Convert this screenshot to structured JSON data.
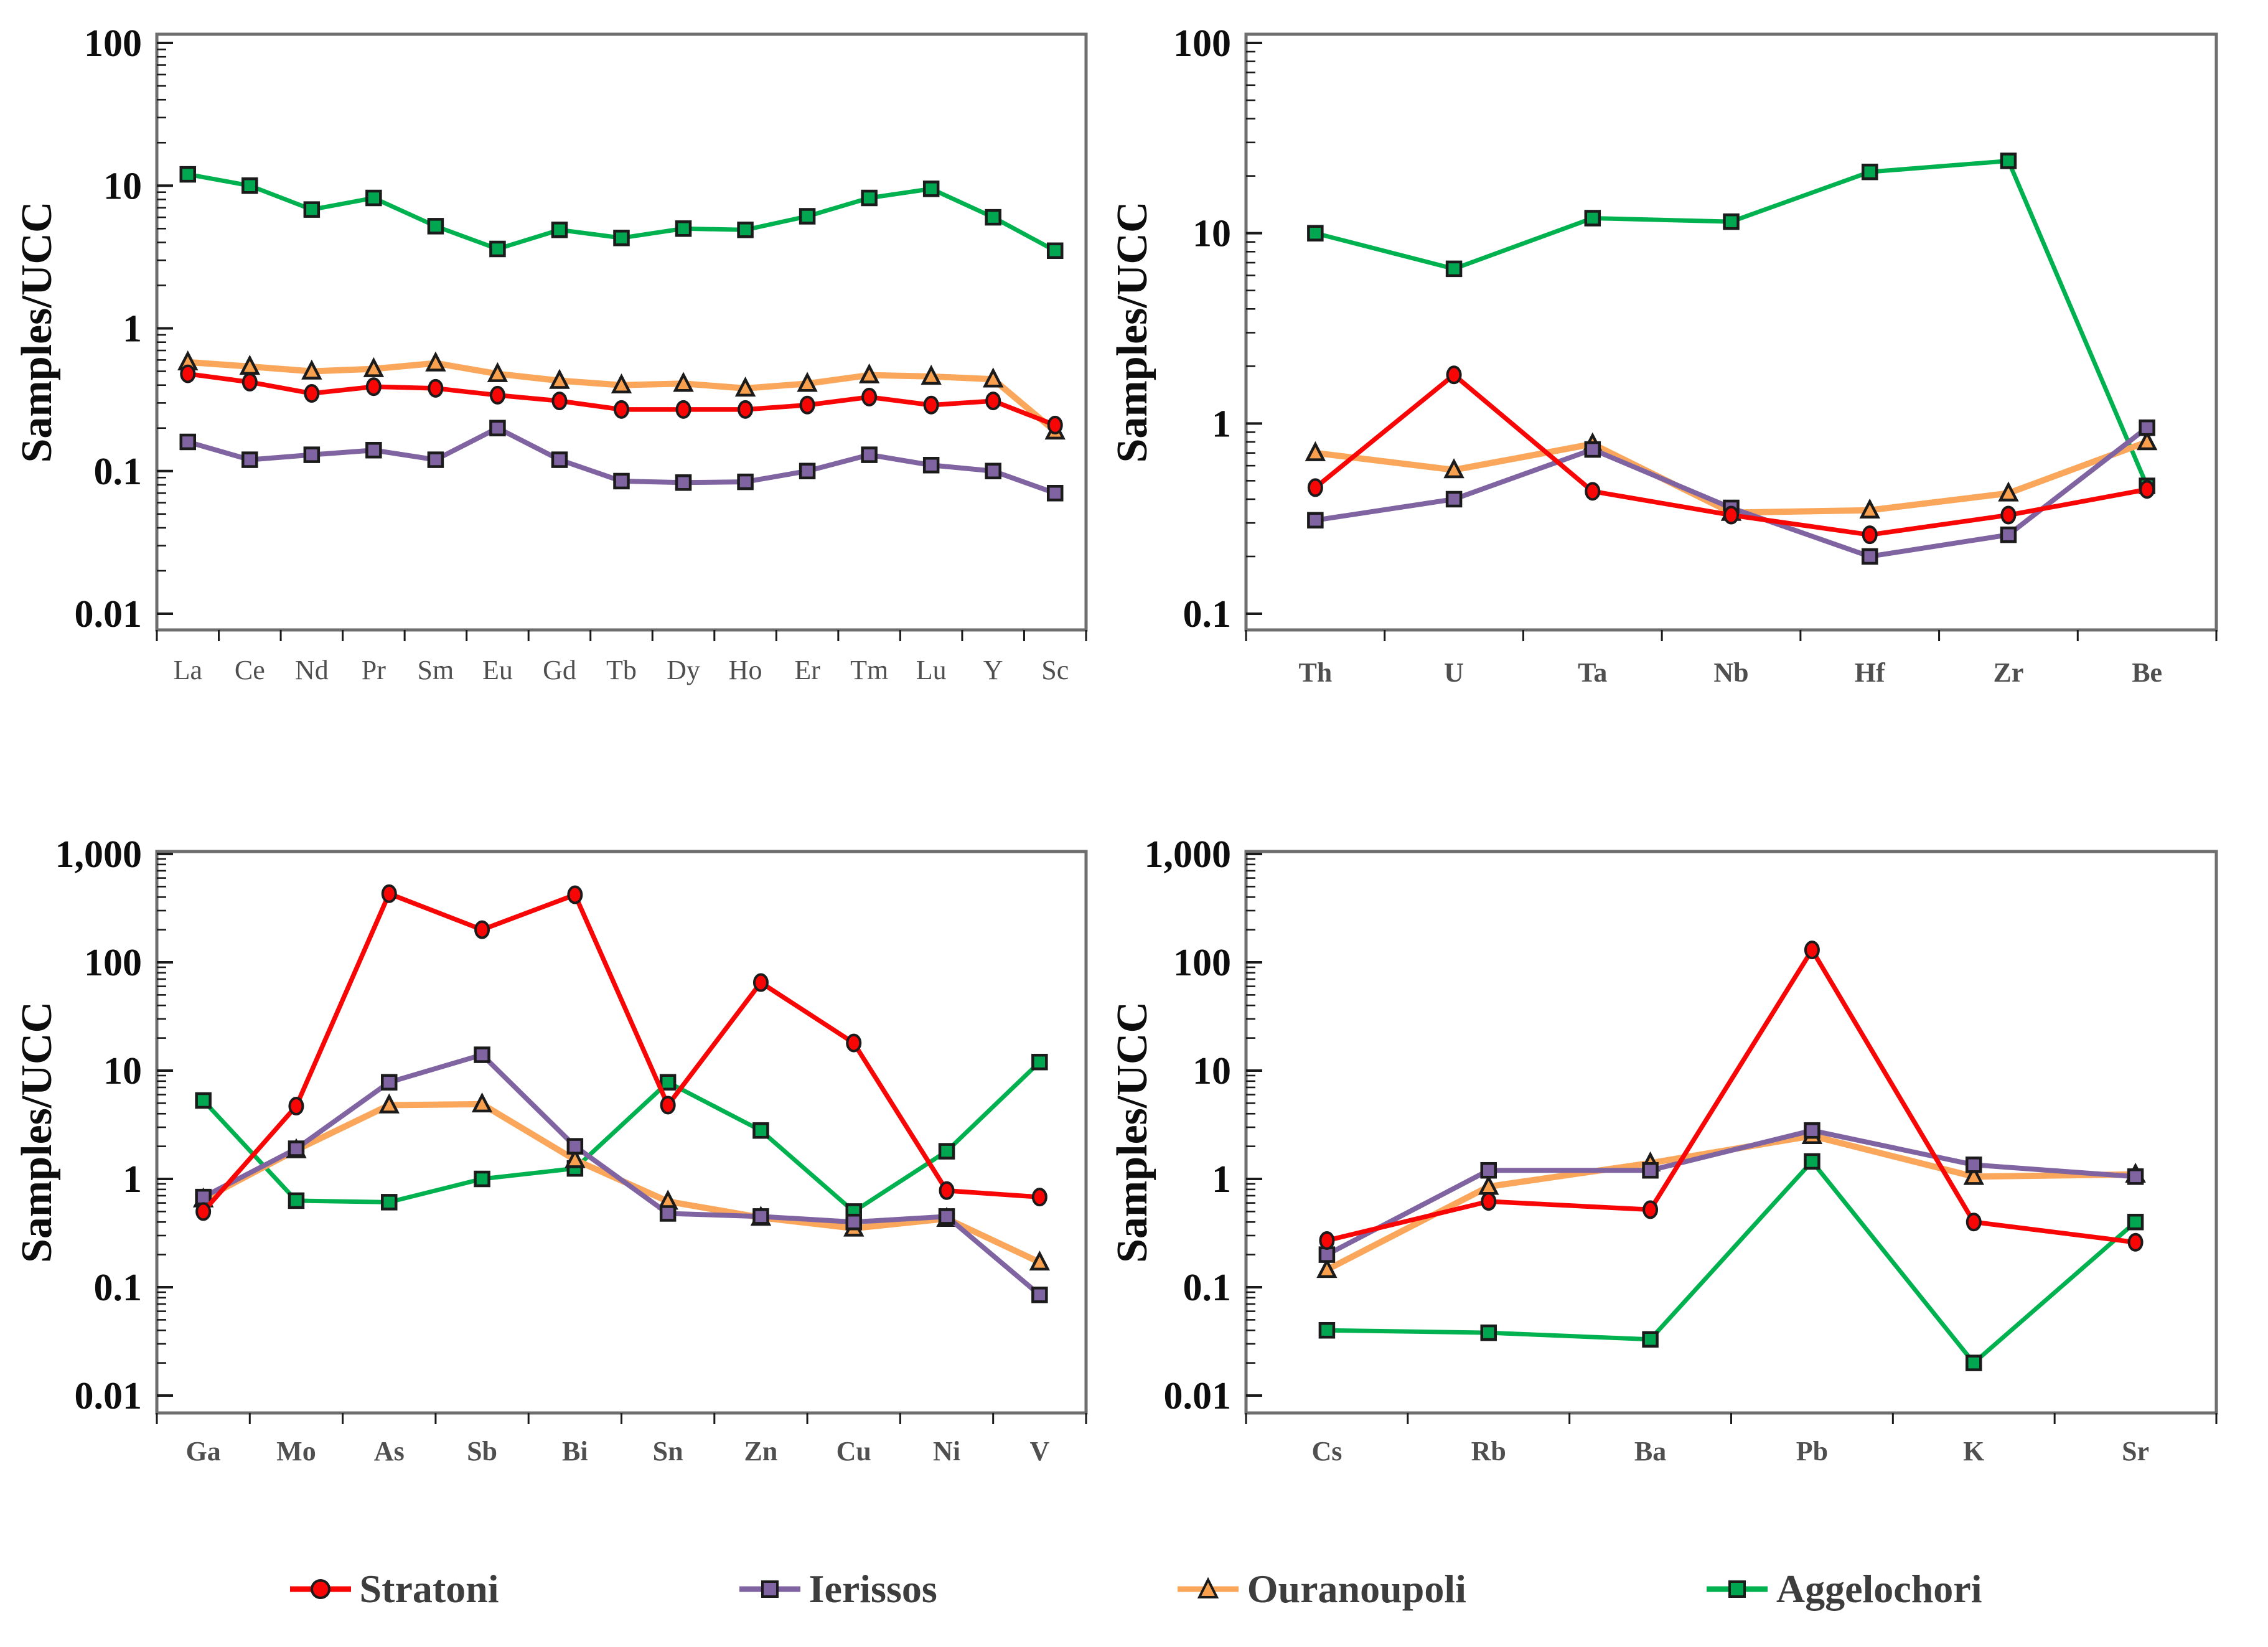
{
  "figure": {
    "ylabel": "Samples/UCC",
    "legend": {
      "items": [
        {
          "label": "Stratoni",
          "marker": "circle",
          "color": "#F80505",
          "line_color": "#F80505"
        },
        {
          "label": "Ierissos",
          "marker": "square",
          "color": "#8064A2",
          "line_color": "#8064A2"
        },
        {
          "label": "Ouranoupoli",
          "marker": "triangle",
          "color": "#F9A04F",
          "line_color": "#FAA75C"
        },
        {
          "label": "Aggelochori",
          "marker": "square",
          "color": "#00A650",
          "line_color": "#00B24F"
        }
      ]
    }
  },
  "chart_data": [
    {
      "id": "ree-spider",
      "type": "line",
      "title": "",
      "xlabel": "",
      "ylabel": "Samples/UCC",
      "yscale": "log",
      "ylim": [
        0.01,
        100
      ],
      "ytick_labels": [
        "100",
        "10",
        "1",
        "0.1",
        "0.01"
      ],
      "grid": false,
      "legend_position": "shared-bottom",
      "categories": [
        "La",
        "Ce",
        "Nd",
        "Pr",
        "Sm",
        "Eu",
        "Gd",
        "Tb",
        "Dy",
        "Ho",
        "Er",
        "Tm",
        "Lu",
        "Y",
        "Sc"
      ],
      "series": [
        {
          "name": "Stratoni",
          "values": [
            0.48,
            0.42,
            0.35,
            0.39,
            0.38,
            0.34,
            0.31,
            0.27,
            0.27,
            0.27,
            0.29,
            0.33,
            0.29,
            0.31,
            0.21
          ]
        },
        {
          "name": "Ierissos",
          "values": [
            0.16,
            0.12,
            0.13,
            0.14,
            0.12,
            0.2,
            0.12,
            0.085,
            0.083,
            0.084,
            0.1,
            0.13,
            0.11,
            0.1,
            0.07
          ]
        },
        {
          "name": "Ouranoupoli",
          "values": [
            0.58,
            0.54,
            0.5,
            0.52,
            0.57,
            0.48,
            0.43,
            0.4,
            0.41,
            0.38,
            0.41,
            0.47,
            0.46,
            0.44,
            0.19
          ]
        },
        {
          "name": "Aggelochori",
          "values": [
            12,
            10,
            6.8,
            8.2,
            5.2,
            3.6,
            4.9,
            4.3,
            5.0,
            4.9,
            6.1,
            8.2,
            9.5,
            6.0,
            3.5
          ]
        }
      ]
    },
    {
      "id": "hfse-spider",
      "type": "line",
      "title": "",
      "xlabel": "",
      "ylabel": "Samples/UCC",
      "yscale": "log",
      "ylim": [
        0.1,
        100
      ],
      "ytick_labels": [
        "100",
        "10",
        "1",
        "0.1"
      ],
      "grid": false,
      "legend_position": "shared-bottom",
      "categories": [
        "Th",
        "U",
        "Ta",
        "Nb",
        "Hf",
        "Zr",
        "Be"
      ],
      "series": [
        {
          "name": "Stratoni",
          "values": [
            0.46,
            1.8,
            0.44,
            0.33,
            0.26,
            0.33,
            0.45
          ]
        },
        {
          "name": "Ierissos",
          "values": [
            0.31,
            0.4,
            0.73,
            0.36,
            0.2,
            0.26,
            0.95
          ]
        },
        {
          "name": "Ouranoupoli",
          "values": [
            0.7,
            0.57,
            0.78,
            0.34,
            0.35,
            0.43,
            0.8
          ]
        },
        {
          "name": "Aggelochori",
          "values": [
            10,
            6.5,
            12,
            11.5,
            21,
            24,
            0.47
          ]
        }
      ]
    },
    {
      "id": "chalcophile-spider",
      "type": "line",
      "title": "",
      "xlabel": "",
      "ylabel": "Samples/UCC",
      "yscale": "log",
      "ylim": [
        0.01,
        1000
      ],
      "ytick_labels": [
        "1,000",
        "100",
        "10",
        "1",
        "0.1",
        "0.01"
      ],
      "grid": false,
      "legend_position": "shared-bottom",
      "categories": [
        "Ga",
        "Mo",
        "As",
        "Sb",
        "Bi",
        "Sn",
        "Zn",
        "Cu",
        "Ni",
        "V"
      ],
      "series": [
        {
          "name": "Stratoni",
          "values": [
            0.5,
            4.7,
            430,
            200,
            420,
            4.8,
            65,
            18,
            0.78,
            0.68
          ]
        },
        {
          "name": "Ierissos",
          "values": [
            0.68,
            1.9,
            7.8,
            14,
            2.0,
            0.48,
            0.45,
            0.4,
            0.45,
            0.085
          ]
        },
        {
          "name": "Ouranoupoli",
          "values": [
            0.65,
            1.85,
            4.8,
            4.9,
            1.5,
            0.62,
            0.44,
            0.35,
            0.43,
            0.17
          ]
        },
        {
          "name": "Aggelochori",
          "values": [
            5.3,
            0.63,
            0.61,
            1.0,
            1.25,
            7.8,
            2.8,
            0.5,
            1.8,
            12
          ]
        }
      ]
    },
    {
      "id": "lile-spider",
      "type": "line",
      "title": "",
      "xlabel": "",
      "ylabel": "Samples/UCC",
      "yscale": "log",
      "ylim": [
        0.01,
        1000
      ],
      "ytick_labels": [
        "1,000",
        "100",
        "10",
        "1",
        "0.1",
        "0.01"
      ],
      "grid": false,
      "legend_position": "shared-bottom",
      "categories": [
        "Cs",
        "Rb",
        "Ba",
        "Pb",
        "K",
        "Sr"
      ],
      "series": [
        {
          "name": "Stratoni",
          "values": [
            0.27,
            0.62,
            0.52,
            130,
            0.4,
            0.26
          ]
        },
        {
          "name": "Ierissos",
          "values": [
            0.2,
            1.2,
            1.2,
            2.8,
            1.35,
            1.05
          ]
        },
        {
          "name": "Ouranoupoli",
          "values": [
            0.145,
            0.85,
            1.4,
            2.5,
            1.05,
            1.1
          ]
        },
        {
          "name": "Aggelochori",
          "values": [
            0.04,
            0.038,
            0.033,
            1.45,
            0.02,
            0.4
          ]
        }
      ]
    }
  ]
}
